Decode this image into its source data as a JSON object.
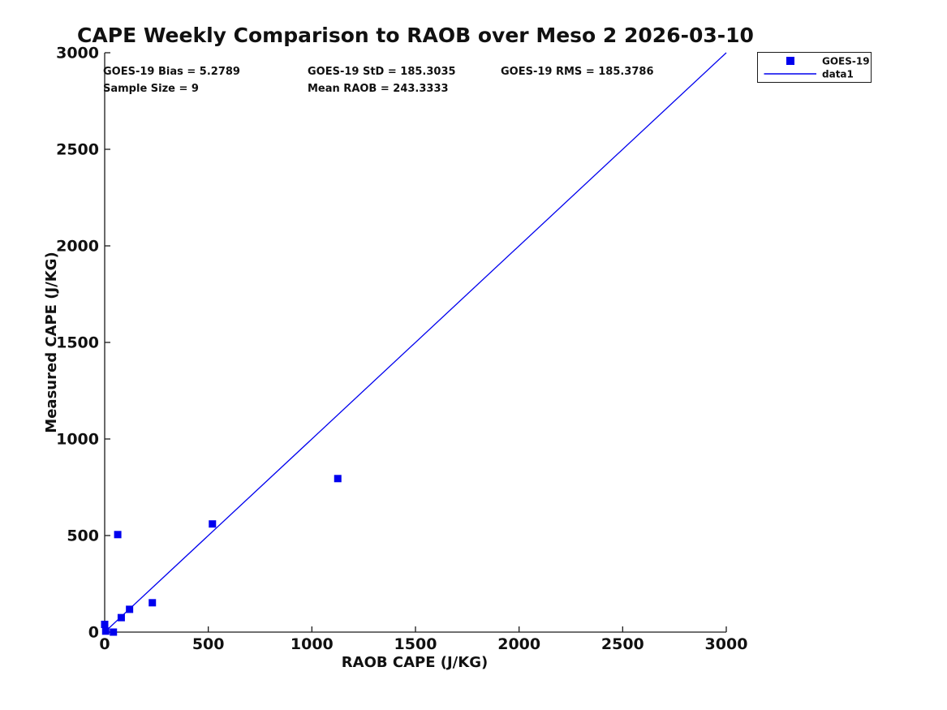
{
  "title": "CAPE Weekly Comparison to RAOB over Meso 2 2026-03-10",
  "stats": {
    "bias": "GOES-19 Bias = 5.2789",
    "std": "GOES-19 StD = 185.3035",
    "rms": "GOES-19 RMS = 185.3786",
    "sample_size": "Sample Size = 9",
    "mean_raob": "Mean RAOB = 243.3333"
  },
  "legend": {
    "entries": [
      {
        "label": "GOES-19",
        "symbol": "square-marker",
        "color": "#0000ee"
      },
      {
        "label": "data1",
        "symbol": "line",
        "color": "#0000ee"
      }
    ]
  },
  "chart_data": {
    "type": "scatter",
    "title": "CAPE Weekly Comparison to RAOB over Meso 2 2026-03-10",
    "xlabel": "RAOB CAPE (J/KG)",
    "ylabel": "Measured CAPE (J/KG)",
    "xlim": [
      0,
      3000
    ],
    "ylim": [
      0,
      3000
    ],
    "x_ticks": [
      0,
      500,
      1000,
      1500,
      2000,
      2500,
      3000
    ],
    "y_ticks": [
      0,
      500,
      1000,
      1500,
      2000,
      2500,
      3000
    ],
    "grid": false,
    "legend_position": "outside-top-right",
    "series": [
      {
        "name": "GOES-19",
        "type": "scatter",
        "marker": "square",
        "color": "#0000ee",
        "points": [
          [
            0,
            40
          ],
          [
            5,
            5
          ],
          [
            42,
            0
          ],
          [
            80,
            75
          ],
          [
            120,
            118
          ],
          [
            230,
            152
          ],
          [
            63,
            505
          ],
          [
            520,
            560
          ],
          [
            1125,
            795
          ]
        ]
      },
      {
        "name": "data1",
        "type": "line",
        "color": "#0000ee",
        "points": [
          [
            0,
            0
          ],
          [
            3000,
            3000
          ]
        ]
      }
    ]
  },
  "colors": {
    "accent": "#0000ee",
    "text": "#111111",
    "axis": "#1a1a1a",
    "background": "#ffffff"
  }
}
